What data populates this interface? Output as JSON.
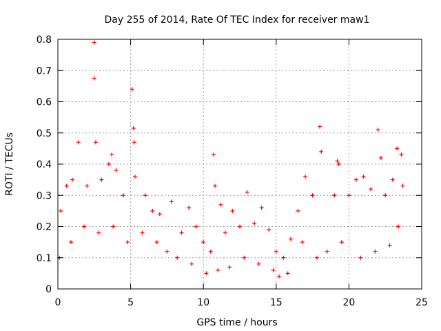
{
  "chart_data": {
    "type": "scatter",
    "title": "Day 255 of 2014, Rate Of TEC Index for receiver maw1",
    "xlabel": "GPS time / hours",
    "ylabel": "ROTI / TECUs",
    "xlim": [
      0,
      25
    ],
    "ylim": [
      0,
      0.8
    ],
    "xticks": [
      "0",
      "5",
      "10",
      "15",
      "20",
      "25"
    ],
    "yticks": [
      "0",
      "0.1",
      "0.2",
      "0.3",
      "0.4",
      "0.5",
      "0.6",
      "0.7",
      "0.8"
    ],
    "grid": true,
    "legend": "none",
    "marker": "+",
    "series_color": "#ff0000",
    "series": [
      {
        "x": [
          2.5,
          2.5,
          5.1,
          5.2,
          5.25,
          18.0,
          22.0,
          10.7,
          10.8,
          1.4,
          2.6,
          3.7,
          3.5,
          4.0,
          5.3,
          6.0,
          7.8,
          9.0,
          11.2,
          12.0,
          13.0,
          14.0,
          16.0,
          17.0,
          18.1,
          19.2,
          19.3,
          20.5,
          21.0,
          22.2,
          23.3,
          23.6,
          0.2,
          0.6,
          1.0,
          2.0,
          3.0,
          4.5,
          6.5,
          7.0,
          8.5,
          9.5,
          10.0,
          10.5,
          11.5,
          12.5,
          13.5,
          14.5,
          15.0,
          15.5,
          16.5,
          17.5,
          19.0,
          20.0,
          21.5,
          22.5,
          23.0,
          23.7,
          0.1,
          0.9,
          1.8,
          2.8,
          3.8,
          4.8,
          5.8,
          6.8,
          7.5,
          8.2,
          9.2,
          10.2,
          11.0,
          11.8,
          12.8,
          13.8,
          14.8,
          15.2,
          15.8,
          16.8,
          17.8,
          18.5,
          19.5,
          20.8,
          21.8,
          22.8,
          23.4
        ],
        "y": [
          0.79,
          0.675,
          0.64,
          0.515,
          0.47,
          0.52,
          0.51,
          0.43,
          0.33,
          0.47,
          0.47,
          0.43,
          0.4,
          0.38,
          0.36,
          0.3,
          0.28,
          0.26,
          0.27,
          0.25,
          0.31,
          0.26,
          0.16,
          0.36,
          0.44,
          0.41,
          0.4,
          0.35,
          0.36,
          0.42,
          0.45,
          0.43,
          0.25,
          0.33,
          0.35,
          0.33,
          0.35,
          0.3,
          0.25,
          0.24,
          0.18,
          0.2,
          0.15,
          0.12,
          0.18,
          0.2,
          0.21,
          0.19,
          0.12,
          0.1,
          0.25,
          0.3,
          0.3,
          0.3,
          0.32,
          0.3,
          0.35,
          0.33,
          0.1,
          0.15,
          0.2,
          0.18,
          0.2,
          0.15,
          0.18,
          0.15,
          0.12,
          0.1,
          0.08,
          0.05,
          0.06,
          0.07,
          0.1,
          0.08,
          0.06,
          0.04,
          0.05,
          0.15,
          0.1,
          0.12,
          0.15,
          0.1,
          0.12,
          0.14,
          0.2
        ]
      }
    ]
  }
}
